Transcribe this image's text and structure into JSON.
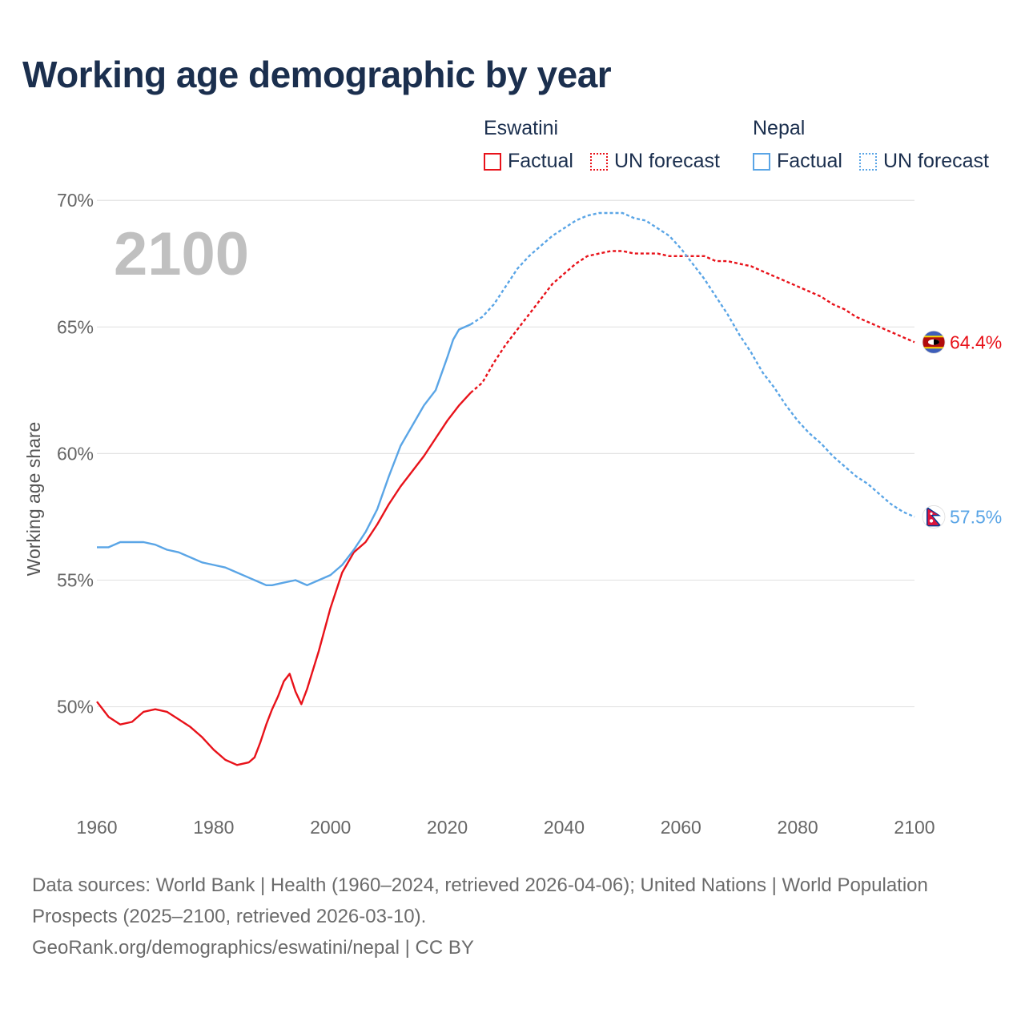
{
  "title": "Working age demographic by year",
  "legend": {
    "groups": [
      {
        "name": "Eswatini",
        "color": "#e8121a",
        "factual_label": "Factual",
        "forecast_label": "UN forecast"
      },
      {
        "name": "Nepal",
        "color": "#5aa5e6",
        "factual_label": "Factual",
        "forecast_label": "UN forecast"
      }
    ]
  },
  "year_watermark": "2100",
  "footer": {
    "sources": "Data sources: World Bank | Health (1960–2024, retrieved 2026-04-06); United Nations | World Population Prospects (2025–2100, retrieved 2026-03-10).",
    "credit": "GeoRank.org/demographics/eswatini/nepal | CC BY"
  },
  "chart_data": {
    "type": "line",
    "title": "Working age demographic by year",
    "xlabel": "",
    "ylabel": "Working age share",
    "xlim": [
      1960,
      2100
    ],
    "ylim": [
      46,
      72
    ],
    "x_ticks": [
      1960,
      1980,
      2000,
      2020,
      2040,
      2060,
      2080,
      2100
    ],
    "y_ticks": [
      50,
      55,
      60,
      65,
      70
    ],
    "y_tick_labels": [
      "50%",
      "55%",
      "60%",
      "65%",
      "70%"
    ],
    "grid": true,
    "factual_end_year": 2024,
    "series": [
      {
        "name": "Eswatini",
        "color": "#e8121a",
        "end_label": "64.4%",
        "flag": "eswatini-flag",
        "points": [
          [
            1960,
            50.2
          ],
          [
            1962,
            49.6
          ],
          [
            1964,
            49.3
          ],
          [
            1966,
            49.4
          ],
          [
            1968,
            49.8
          ],
          [
            1970,
            49.9
          ],
          [
            1972,
            49.8
          ],
          [
            1974,
            49.5
          ],
          [
            1976,
            49.2
          ],
          [
            1978,
            48.8
          ],
          [
            1980,
            48.3
          ],
          [
            1982,
            47.9
          ],
          [
            1984,
            47.7
          ],
          [
            1986,
            47.8
          ],
          [
            1987,
            48.0
          ],
          [
            1988,
            48.6
          ],
          [
            1989,
            49.3
          ],
          [
            1990,
            49.9
          ],
          [
            1991,
            50.4
          ],
          [
            1992,
            51.0
          ],
          [
            1993,
            51.3
          ],
          [
            1994,
            50.6
          ],
          [
            1995,
            50.1
          ],
          [
            1996,
            50.7
          ],
          [
            1998,
            52.2
          ],
          [
            2000,
            53.9
          ],
          [
            2002,
            55.3
          ],
          [
            2004,
            56.1
          ],
          [
            2006,
            56.5
          ],
          [
            2008,
            57.2
          ],
          [
            2010,
            58.0
          ],
          [
            2012,
            58.7
          ],
          [
            2014,
            59.3
          ],
          [
            2016,
            59.9
          ],
          [
            2018,
            60.6
          ],
          [
            2020,
            61.3
          ],
          [
            2022,
            61.9
          ],
          [
            2024,
            62.4
          ],
          [
            2026,
            62.8
          ],
          [
            2028,
            63.6
          ],
          [
            2030,
            64.3
          ],
          [
            2032,
            64.9
          ],
          [
            2034,
            65.5
          ],
          [
            2036,
            66.1
          ],
          [
            2038,
            66.7
          ],
          [
            2040,
            67.1
          ],
          [
            2042,
            67.5
          ],
          [
            2044,
            67.8
          ],
          [
            2046,
            67.9
          ],
          [
            2048,
            68.0
          ],
          [
            2050,
            68.0
          ],
          [
            2052,
            67.9
          ],
          [
            2054,
            67.9
          ],
          [
            2056,
            67.9
          ],
          [
            2058,
            67.8
          ],
          [
            2060,
            67.8
          ],
          [
            2062,
            67.8
          ],
          [
            2064,
            67.8
          ],
          [
            2066,
            67.6
          ],
          [
            2068,
            67.6
          ],
          [
            2070,
            67.5
          ],
          [
            2072,
            67.4
          ],
          [
            2074,
            67.2
          ],
          [
            2076,
            67.0
          ],
          [
            2078,
            66.8
          ],
          [
            2080,
            66.6
          ],
          [
            2082,
            66.4
          ],
          [
            2084,
            66.2
          ],
          [
            2086,
            65.9
          ],
          [
            2088,
            65.7
          ],
          [
            2090,
            65.4
          ],
          [
            2092,
            65.2
          ],
          [
            2094,
            65.0
          ],
          [
            2096,
            64.8
          ],
          [
            2098,
            64.6
          ],
          [
            2100,
            64.4
          ]
        ]
      },
      {
        "name": "Nepal",
        "color": "#5aa5e6",
        "end_label": "57.5%",
        "flag": "nepal-flag",
        "points": [
          [
            1960,
            56.3
          ],
          [
            1962,
            56.3
          ],
          [
            1964,
            56.5
          ],
          [
            1966,
            56.5
          ],
          [
            1968,
            56.5
          ],
          [
            1970,
            56.4
          ],
          [
            1972,
            56.2
          ],
          [
            1974,
            56.1
          ],
          [
            1976,
            55.9
          ],
          [
            1978,
            55.7
          ],
          [
            1980,
            55.6
          ],
          [
            1982,
            55.5
          ],
          [
            1984,
            55.3
          ],
          [
            1986,
            55.1
          ],
          [
            1988,
            54.9
          ],
          [
            1989,
            54.8
          ],
          [
            1990,
            54.8
          ],
          [
            1992,
            54.9
          ],
          [
            1994,
            55.0
          ],
          [
            1996,
            54.8
          ],
          [
            1998,
            55.0
          ],
          [
            2000,
            55.2
          ],
          [
            2002,
            55.6
          ],
          [
            2004,
            56.2
          ],
          [
            2006,
            56.9
          ],
          [
            2008,
            57.8
          ],
          [
            2010,
            59.1
          ],
          [
            2012,
            60.3
          ],
          [
            2014,
            61.1
          ],
          [
            2016,
            61.9
          ],
          [
            2018,
            62.5
          ],
          [
            2020,
            63.8
          ],
          [
            2021,
            64.5
          ],
          [
            2022,
            64.9
          ],
          [
            2024,
            65.1
          ],
          [
            2026,
            65.4
          ],
          [
            2028,
            65.9
          ],
          [
            2030,
            66.6
          ],
          [
            2032,
            67.3
          ],
          [
            2034,
            67.8
          ],
          [
            2036,
            68.2
          ],
          [
            2038,
            68.6
          ],
          [
            2040,
            68.9
          ],
          [
            2042,
            69.2
          ],
          [
            2044,
            69.4
          ],
          [
            2046,
            69.5
          ],
          [
            2048,
            69.5
          ],
          [
            2050,
            69.5
          ],
          [
            2052,
            69.3
          ],
          [
            2054,
            69.2
          ],
          [
            2056,
            68.9
          ],
          [
            2058,
            68.6
          ],
          [
            2060,
            68.1
          ],
          [
            2062,
            67.5
          ],
          [
            2064,
            66.9
          ],
          [
            2066,
            66.2
          ],
          [
            2068,
            65.5
          ],
          [
            2070,
            64.7
          ],
          [
            2072,
            64.0
          ],
          [
            2074,
            63.2
          ],
          [
            2076,
            62.6
          ],
          [
            2078,
            61.9
          ],
          [
            2080,
            61.3
          ],
          [
            2082,
            60.8
          ],
          [
            2084,
            60.4
          ],
          [
            2086,
            59.9
          ],
          [
            2088,
            59.5
          ],
          [
            2090,
            59.1
          ],
          [
            2092,
            58.8
          ],
          [
            2094,
            58.4
          ],
          [
            2096,
            58.0
          ],
          [
            2098,
            57.7
          ],
          [
            2100,
            57.5
          ]
        ]
      }
    ]
  }
}
